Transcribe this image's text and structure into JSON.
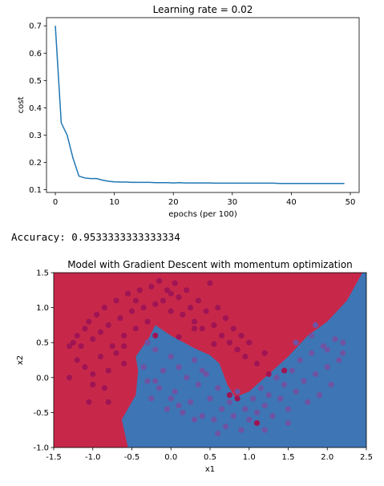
{
  "output_text": "Accuracy: 0.9533333333333334",
  "chart_data": [
    {
      "type": "line",
      "title": "Learning rate = 0.02",
      "xlabel": "epochs (per 100)",
      "ylabel": "cost",
      "xlim": [
        -1.5,
        51.5
      ],
      "ylim": [
        0.09,
        0.73
      ],
      "xticks": [
        0,
        10,
        20,
        30,
        40,
        50
      ],
      "yticks": [
        0.1,
        0.2,
        0.3,
        0.4,
        0.5,
        0.6,
        0.7
      ],
      "yticklabels": [
        "0.1",
        "0.2",
        "0.3",
        "0.4",
        "0.5",
        "0.6",
        "0.7"
      ],
      "grid": false,
      "series": [
        {
          "color": "#1f77b4",
          "x": [
            0,
            1,
            2,
            3,
            4,
            5,
            6,
            7,
            8,
            9,
            10,
            11,
            12,
            13,
            14,
            15,
            16,
            17,
            18,
            19,
            20,
            21,
            22,
            23,
            24,
            25,
            26,
            27,
            28,
            29,
            30,
            31,
            32,
            33,
            34,
            35,
            36,
            37,
            38,
            39,
            40,
            41,
            42,
            43,
            44,
            45,
            46,
            47,
            48,
            49
          ],
          "values": [
            0.7,
            0.345,
            0.3,
            0.215,
            0.15,
            0.143,
            0.141,
            0.141,
            0.135,
            0.131,
            0.129,
            0.128,
            0.128,
            0.127,
            0.127,
            0.127,
            0.127,
            0.126,
            0.126,
            0.126,
            0.125,
            0.126,
            0.125,
            0.125,
            0.125,
            0.125,
            0.125,
            0.124,
            0.124,
            0.124,
            0.124,
            0.124,
            0.124,
            0.124,
            0.124,
            0.124,
            0.124,
            0.124,
            0.123,
            0.123,
            0.123,
            0.123,
            0.123,
            0.123,
            0.123,
            0.123,
            0.123,
            0.123,
            0.123,
            0.123
          ]
        }
      ]
    },
    {
      "type": "scatter",
      "title": "Model with Gradient Descent with momentum optimization",
      "xlabel": "x1",
      "ylabel": "x2",
      "xlim": [
        -1.5,
        2.5
      ],
      "ylim": [
        -1.0,
        1.5
      ],
      "xticks": [
        -1.5,
        -1.0,
        -0.5,
        0.0,
        0.5,
        1.0,
        1.5,
        2.0,
        2.5
      ],
      "xticklabels": [
        "-1.5",
        "-1.0",
        "-0.5",
        "0.0",
        "0.5",
        "1.0",
        "1.5",
        "2.0",
        "2.5"
      ],
      "yticks": [
        -1.0,
        -0.5,
        0.0,
        0.5,
        1.0,
        1.5
      ],
      "yticklabels": [
        "-1.0",
        "-0.5",
        "0.0",
        "0.5",
        "1.0",
        "1.5"
      ],
      "regions": {
        "class_0_color": "#c7284a",
        "class_1_color": "#3e75b4",
        "boundary": [
          [
            -0.55,
            -1.0
          ],
          [
            -0.63,
            -0.6
          ],
          [
            -0.45,
            -0.25
          ],
          [
            -0.42,
            0.1
          ],
          [
            -0.45,
            0.3
          ],
          [
            -0.28,
            0.57
          ],
          [
            -0.2,
            0.75
          ],
          [
            0.0,
            0.6
          ],
          [
            0.3,
            0.42
          ],
          [
            0.5,
            0.32
          ],
          [
            0.62,
            0.2
          ],
          [
            0.72,
            -0.1
          ],
          [
            0.82,
            -0.28
          ],
          [
            1.0,
            -0.2
          ],
          [
            1.25,
            0.05
          ],
          [
            1.5,
            0.3
          ],
          [
            1.75,
            0.6
          ],
          [
            2.0,
            0.8
          ],
          [
            2.25,
            1.1
          ],
          [
            2.45,
            1.5
          ]
        ]
      },
      "point_colors": {
        "class_0": "#a01454",
        "class_1": "#6f53a3"
      },
      "class_0_points": [
        [
          -1.3,
          0.45
        ],
        [
          -1.25,
          0.5
        ],
        [
          -1.2,
          0.6
        ],
        [
          -1.15,
          0.45
        ],
        [
          -1.1,
          0.7
        ],
        [
          -1.05,
          0.8
        ],
        [
          -1.0,
          0.55
        ],
        [
          -0.95,
          0.9
        ],
        [
          -0.9,
          0.65
        ],
        [
          -0.85,
          1.0
        ],
        [
          -0.8,
          0.75
        ],
        [
          -0.75,
          0.45
        ],
        [
          -0.7,
          1.1
        ],
        [
          -0.65,
          0.85
        ],
        [
          -0.6,
          0.6
        ],
        [
          -0.55,
          1.2
        ],
        [
          -0.5,
          0.95
        ],
        [
          -0.45,
          0.7
        ],
        [
          -0.4,
          1.25
        ],
        [
          -0.35,
          1.0
        ],
        [
          -0.3,
          0.8
        ],
        [
          -0.25,
          1.3
        ],
        [
          -0.2,
          1.05
        ],
        [
          -0.15,
          1.38
        ],
        [
          -0.1,
          1.1
        ],
        [
          -0.05,
          1.25
        ],
        [
          0.0,
          0.95
        ],
        [
          0.05,
          1.35
        ],
        [
          0.1,
          1.15
        ],
        [
          0.15,
          0.9
        ],
        [
          0.2,
          1.25
        ],
        [
          0.25,
          1.0
        ],
        [
          0.3,
          0.8
        ],
        [
          0.35,
          1.1
        ],
        [
          0.4,
          0.7
        ],
        [
          0.45,
          0.95
        ],
        [
          0.5,
          1.35
        ],
        [
          0.55,
          0.75
        ],
        [
          0.6,
          1.0
        ],
        [
          0.65,
          0.6
        ],
        [
          0.7,
          0.85
        ],
        [
          0.75,
          0.5
        ],
        [
          0.8,
          0.7
        ],
        [
          0.85,
          0.4
        ],
        [
          0.9,
          0.6
        ],
        [
          0.95,
          0.3
        ],
        [
          1.0,
          0.5
        ],
        [
          1.1,
          0.2
        ],
        [
          1.2,
          0.35
        ],
        [
          -1.3,
          0.0
        ],
        [
          -1.2,
          0.25
        ],
        [
          -1.1,
          0.15
        ],
        [
          -1.0,
          -0.1
        ],
        [
          -0.9,
          0.3
        ],
        [
          -0.8,
          0.1
        ],
        [
          -0.7,
          0.35
        ],
        [
          -0.6,
          0.2
        ],
        [
          -1.0,
          0.05
        ],
        [
          -0.85,
          -0.15
        ],
        [
          -1.05,
          -0.35
        ],
        [
          -0.8,
          -0.35
        ],
        [
          -0.6,
          0.45
        ],
        [
          0.1,
          0.58
        ],
        [
          0.3,
          0.7
        ],
        [
          0.55,
          0.48
        ],
        [
          0.75,
          -0.25
        ],
        [
          0.85,
          -0.3
        ],
        [
          1.1,
          -0.65
        ],
        [
          1.25,
          0.05
        ],
        [
          1.45,
          0.1
        ],
        [
          -0.2,
          0.6
        ],
        [
          0.0,
          1.2
        ],
        [
          -0.45,
          1.1
        ]
      ],
      "class_1_points": [
        [
          -0.35,
          0.15
        ],
        [
          -0.3,
          -0.05
        ],
        [
          -0.25,
          -0.3
        ],
        [
          -0.2,
          0.4
        ],
        [
          -0.15,
          -0.15
        ],
        [
          -0.1,
          0.1
        ],
        [
          -0.05,
          -0.45
        ],
        [
          0.0,
          0.3
        ],
        [
          0.05,
          -0.2
        ],
        [
          0.1,
          0.15
        ],
        [
          0.15,
          -0.5
        ],
        [
          0.2,
          0.0
        ],
        [
          0.25,
          -0.35
        ],
        [
          0.3,
          0.25
        ],
        [
          0.35,
          -0.1
        ],
        [
          0.4,
          -0.55
        ],
        [
          0.45,
          0.05
        ],
        [
          0.5,
          -0.3
        ],
        [
          0.55,
          -0.6
        ],
        [
          0.6,
          -0.15
        ],
        [
          0.65,
          -0.45
        ],
        [
          0.7,
          -0.7
        ],
        [
          0.75,
          -0.35
        ],
        [
          0.8,
          -0.55
        ],
        [
          0.85,
          -0.2
        ],
        [
          0.9,
          -0.75
        ],
        [
          0.95,
          -0.45
        ],
        [
          1.0,
          -0.6
        ],
        [
          1.05,
          -0.3
        ],
        [
          1.1,
          -0.5
        ],
        [
          1.15,
          -0.15
        ],
        [
          1.2,
          -0.4
        ],
        [
          1.25,
          -0.25
        ],
        [
          1.3,
          -0.55
        ],
        [
          1.35,
          0.0
        ],
        [
          1.4,
          -0.3
        ],
        [
          1.45,
          -0.1
        ],
        [
          1.5,
          -0.45
        ],
        [
          1.55,
          0.1
        ],
        [
          1.6,
          -0.2
        ],
        [
          1.65,
          0.25
        ],
        [
          1.7,
          -0.05
        ],
        [
          1.75,
          -0.35
        ],
        [
          1.8,
          0.35
        ],
        [
          1.85,
          0.05
        ],
        [
          1.9,
          -0.25
        ],
        [
          1.95,
          0.45
        ],
        [
          2.0,
          0.15
        ],
        [
          2.05,
          -0.1
        ],
        [
          2.1,
          0.55
        ],
        [
          2.15,
          0.25
        ],
        [
          2.2,
          0.35
        ],
        [
          1.6,
          0.5
        ],
        [
          1.8,
          0.6
        ],
        [
          2.0,
          0.4
        ],
        [
          -0.3,
          0.5
        ],
        [
          0.3,
          -0.6
        ],
        [
          0.6,
          -0.8
        ],
        [
          1.2,
          -0.75
        ],
        [
          1.5,
          -0.65
        ],
        [
          0.0,
          -0.3
        ],
        [
          -0.2,
          -0.05
        ],
        [
          2.2,
          0.5
        ],
        [
          1.85,
          0.75
        ],
        [
          0.1,
          -0.4
        ],
        [
          0.4,
          0.1
        ]
      ]
    }
  ]
}
